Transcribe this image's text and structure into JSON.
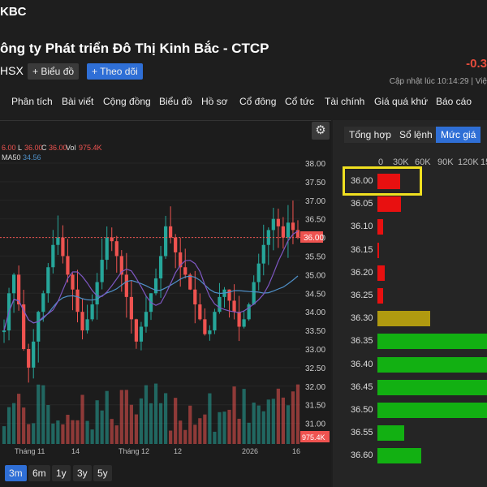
{
  "ticker": "KBC",
  "company_name": "ông ty Phát triển Đô Thị Kinh Bắc - CTCP",
  "exchange": "HSX",
  "change": "-0.3",
  "buttons": {
    "chart": "+ Biểu đồ",
    "follow": "+ Theo dõi"
  },
  "updated": "Cập nhật lúc  10:14:29 | Việ",
  "nav": [
    "Phân tích",
    "Bài viết",
    "Cộng đồng",
    "Biểu đồ",
    "Hồ sơ",
    "Cổ đông",
    "Cổ tức",
    "Tài chính",
    "Giá quá khứ",
    "Báo cáo"
  ],
  "chart": {
    "ohlc_line": [
      "6.00",
      "L",
      "36.00",
      "C",
      "36.00",
      "Vol",
      "975.4K"
    ],
    "ma_label": "MA50",
    "ma_value": "34.56",
    "price_labels": [
      "38.00",
      "37.50",
      "37.00",
      "36.50",
      "36.00",
      "35.50",
      "35.00",
      "34.50",
      "34.00",
      "33.50",
      "33.00",
      "32.50",
      "32.00",
      "31.50",
      "31.00"
    ],
    "current_price": "36.00",
    "volume_label": "975.4K",
    "date_labels": [
      "Tháng 11",
      "14",
      "Tháng 12",
      "12",
      "2026",
      "16"
    ],
    "colors": {
      "up": "#26a69a",
      "down": "#ef5350",
      "ma": "#4f90c8",
      "ma2": "#7e57c2"
    }
  },
  "ranges": [
    "3m",
    "6m",
    "1y",
    "3y",
    "5y"
  ],
  "active_range": "3m",
  "panel": {
    "tabs": [
      "Tổng hợp",
      "Sổ lệnh",
      "Mức giá"
    ],
    "active_tab": "Mức giá",
    "axis": [
      "0",
      "30K",
      "60K",
      "90K",
      "120K",
      "15"
    ],
    "levels": [
      {
        "price": "36.00",
        "volume": 30000,
        "side": "sell"
      },
      {
        "price": "36.05",
        "volume": 31000,
        "side": "sell"
      },
      {
        "price": "36.10",
        "volume": 7000,
        "side": "sell"
      },
      {
        "price": "36.15",
        "volume": 2000,
        "side": "sell"
      },
      {
        "price": "36.20",
        "volume": 10000,
        "side": "sell"
      },
      {
        "price": "36.25",
        "volume": 8000,
        "side": "sell"
      },
      {
        "price": "36.30",
        "volume": 70000,
        "side": "mixed"
      },
      {
        "price": "36.35",
        "volume": 150000,
        "side": "buy"
      },
      {
        "price": "36.40",
        "volume": 150000,
        "side": "buy"
      },
      {
        "price": "36.45",
        "volume": 150000,
        "side": "buy"
      },
      {
        "price": "36.50",
        "volume": 150000,
        "side": "buy"
      },
      {
        "price": "36.55",
        "volume": 35000,
        "side": "buy"
      },
      {
        "price": "36.60",
        "volume": 58000,
        "side": "buy"
      }
    ],
    "colors": {
      "sell": "#e81010",
      "mixed": "#b09a10",
      "buy": "#12b012"
    }
  }
}
